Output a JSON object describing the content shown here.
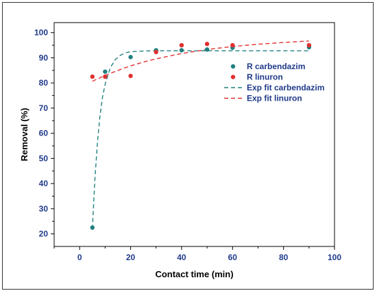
{
  "chart_data": {
    "type": "scatter",
    "xlabel": "Contact time (min)",
    "ylabel": "Removal (%)",
    "xlim": [
      -10,
      100
    ],
    "ylim": [
      15,
      104
    ],
    "xticks": [
      0,
      20,
      40,
      60,
      80,
      100
    ],
    "yticks": [
      20,
      30,
      40,
      50,
      60,
      70,
      80,
      90,
      100
    ],
    "legend_position": "right",
    "grid": false,
    "series": [
      {
        "name": "R carbendazim",
        "kind": "points",
        "color": "#1f8080",
        "marker": "circle",
        "x": [
          5,
          10,
          20,
          30,
          40,
          50,
          60,
          90
        ],
        "y": [
          22.5,
          84.5,
          90.3,
          93.0,
          93.0,
          93.3,
          94.0,
          94.2
        ]
      },
      {
        "name": "R linuron",
        "kind": "points",
        "color": "#e03030",
        "marker": "circle",
        "x": [
          5,
          10,
          20,
          30,
          40,
          50,
          60,
          90
        ],
        "y": [
          82.5,
          82.5,
          82.8,
          92.3,
          95.0,
          95.5,
          95.0,
          95.0
        ]
      },
      {
        "name": "Exp fit carbendazim",
        "kind": "line",
        "style": "dashed",
        "color": "#1f8080",
        "x": [
          5,
          6,
          7,
          8,
          9,
          10,
          12,
          14,
          16,
          18,
          20,
          25,
          30,
          40,
          50,
          60,
          70,
          80,
          90
        ],
        "y": [
          22.0,
          42.0,
          56.5,
          67.0,
          74.5,
          79.5,
          86.0,
          89.3,
          91.0,
          92.0,
          92.4,
          92.7,
          92.8,
          92.8,
          92.8,
          92.8,
          92.8,
          92.8,
          92.8
        ]
      },
      {
        "name": "Exp fit linuron",
        "kind": "line",
        "style": "dashed",
        "color": "#e03030",
        "x": [
          5,
          10,
          15,
          20,
          25,
          30,
          40,
          50,
          60,
          70,
          80,
          90
        ],
        "y": [
          80.7,
          83.0,
          85.0,
          86.8,
          88.3,
          89.6,
          91.7,
          93.3,
          94.5,
          95.4,
          96.1,
          96.7
        ]
      }
    ]
  }
}
